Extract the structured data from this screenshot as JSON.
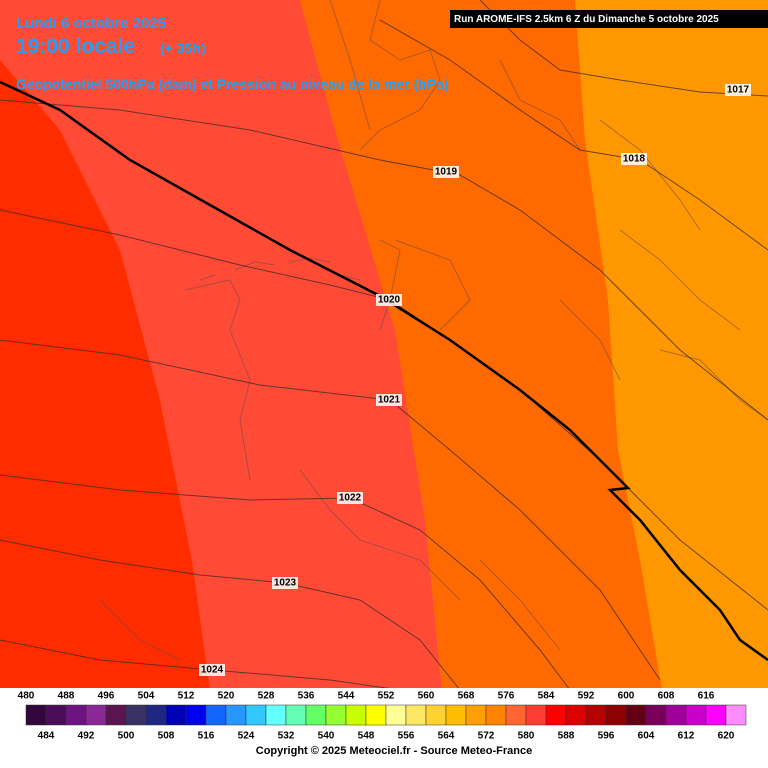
{
  "header": {
    "date": "Lundi 6 octobre 2025",
    "time": "19:00 locale",
    "lead": "(+ 35h)",
    "field": "Geopotentiel 500hPa (dam) et Pression au niveau de la mer (hPa)",
    "run": "Run AROME-IFS 2.5km 6 Z du Dimanche 5 octobre 2025"
  },
  "isobars": [
    "1017",
    "1018",
    "1019",
    "1020",
    "1021",
    "1022",
    "1023",
    "1024"
  ],
  "legend": {
    "top_labels": [
      "480",
      "488",
      "496",
      "504",
      "512",
      "520",
      "528",
      "536",
      "544",
      "552",
      "560",
      "568",
      "576",
      "584",
      "592",
      "600",
      "608",
      "616"
    ],
    "bottom_labels": [
      "484",
      "492",
      "500",
      "508",
      "516",
      "524",
      "532",
      "540",
      "548",
      "556",
      "564",
      "572",
      "580",
      "588",
      "596",
      "604",
      "612",
      "620"
    ],
    "colors": [
      "#32083c",
      "#4b0c5a",
      "#6e1482",
      "#8a2896",
      "#5a1450",
      "#3a3264",
      "#1e2882",
      "#0000b4",
      "#0000f0",
      "#1464ff",
      "#2896ff",
      "#32c8ff",
      "#64ffff",
      "#64ffb4",
      "#64ff64",
      "#96ff32",
      "#c8ff00",
      "#ffff00",
      "#ffff96",
      "#ffe664",
      "#ffd232",
      "#ffbe00",
      "#ffa000",
      "#ff8200",
      "#ff6432",
      "#ff3c32",
      "#ff0000",
      "#dc0000",
      "#b40000",
      "#8c0000",
      "#640014",
      "#78005a",
      "#a0009a",
      "#c800c8",
      "#ff00ff",
      "#ff8cff"
    ]
  },
  "copyright": "Copyright © 2025 Meteociel.fr - Source Meteo-France"
}
